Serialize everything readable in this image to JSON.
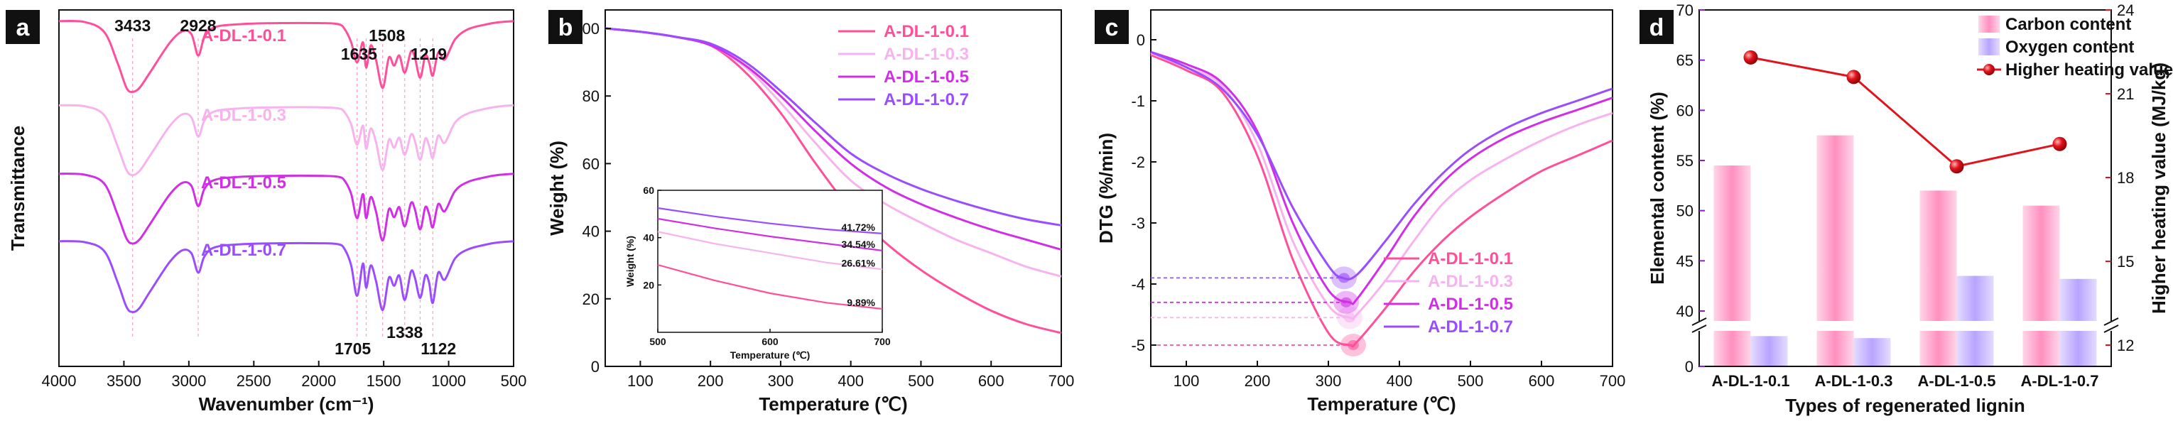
{
  "colors": {
    "s1": "#ff4f9a",
    "s2": "#f7b3ee",
    "s3": "#d12fe6",
    "s4": "#9a4cff",
    "carbon": "#ff8fbf",
    "oxygen": "#b8a4ff",
    "hhv": "#e0141c",
    "axis_red": "#e0141c",
    "axis_purple": "#8a1fc7"
  },
  "chart_data": [
    {
      "panel": "a",
      "type": "line",
      "xlabel": "Wavenumber (cm⁻¹)",
      "ylabel": "Transmittance",
      "xlim": [
        4000,
        500
      ],
      "xticks": [
        4000,
        3500,
        3000,
        2500,
        2000,
        1500,
        1000,
        500
      ],
      "series": [
        {
          "name": "A-DL-1-0.1",
          "x": [
            4000,
            3800,
            3650,
            3550,
            3480,
            3433,
            3380,
            3300,
            3150,
            3050,
            2980,
            2928,
            2880,
            2800,
            2600,
            2300,
            2000,
            1850,
            1800,
            1750,
            1705,
            1660,
            1635,
            1600,
            1560,
            1508,
            1460,
            1420,
            1380,
            1338,
            1290,
            1260,
            1219,
            1180,
            1150,
            1122,
            1080,
            1030,
            950,
            850,
            700,
            600,
            500
          ],
          "y": [
            96,
            95,
            85,
            55,
            30,
            26,
            30,
            45,
            74,
            86,
            83,
            62,
            80,
            90,
            93,
            94,
            94,
            93,
            88,
            75,
            55,
            75,
            50,
            72,
            58,
            30,
            60,
            52,
            62,
            45,
            66,
            60,
            40,
            62,
            55,
            42,
            65,
            58,
            78,
            88,
            93,
            95,
            96
          ]
        },
        {
          "name": "A-DL-1-0.3",
          "x": [
            4000,
            3800,
            3650,
            3550,
            3480,
            3433,
            3380,
            3300,
            3150,
            3050,
            2980,
            2928,
            2880,
            2800,
            2600,
            2300,
            2000,
            1850,
            1800,
            1750,
            1705,
            1660,
            1635,
            1600,
            1560,
            1508,
            1460,
            1420,
            1380,
            1338,
            1290,
            1260,
            1219,
            1180,
            1150,
            1122,
            1080,
            1030,
            950,
            850,
            700,
            600,
            500
          ],
          "y": [
            97,
            96,
            87,
            57,
            33,
            28,
            32,
            47,
            76,
            88,
            85,
            66,
            82,
            91,
            94,
            95,
            95,
            94,
            90,
            78,
            58,
            77,
            54,
            74,
            61,
            33,
            63,
            55,
            65,
            48,
            68,
            62,
            43,
            64,
            57,
            45,
            67,
            60,
            80,
            89,
            94,
            96,
            97
          ]
        },
        {
          "name": "A-DL-1-0.5",
          "x": [
            4000,
            3800,
            3650,
            3550,
            3480,
            3433,
            3380,
            3300,
            3150,
            3050,
            2980,
            2928,
            2880,
            2800,
            2600,
            2300,
            2000,
            1850,
            1800,
            1750,
            1705,
            1660,
            1635,
            1600,
            1560,
            1508,
            1460,
            1420,
            1380,
            1338,
            1290,
            1260,
            1219,
            1180,
            1150,
            1122,
            1080,
            1030,
            950,
            850,
            700,
            600,
            500
          ],
          "y": [
            96,
            95,
            86,
            56,
            32,
            27,
            31,
            46,
            75,
            87,
            84,
            64,
            81,
            90,
            93,
            94,
            94,
            93,
            89,
            76,
            52,
            76,
            52,
            73,
            59,
            30,
            61,
            53,
            63,
            44,
            67,
            61,
            41,
            63,
            56,
            43,
            66,
            59,
            79,
            88,
            93,
            95,
            96
          ]
        },
        {
          "name": "A-DL-1-0.7",
          "x": [
            4000,
            3800,
            3650,
            3550,
            3480,
            3433,
            3380,
            3300,
            3150,
            3050,
            2980,
            2928,
            2880,
            2800,
            2600,
            2300,
            2000,
            1850,
            1800,
            1750,
            1705,
            1660,
            1635,
            1600,
            1560,
            1508,
            1460,
            1420,
            1380,
            1338,
            1290,
            1260,
            1219,
            1180,
            1150,
            1122,
            1080,
            1030,
            950,
            850,
            700,
            600,
            500
          ],
          "y": [
            96,
            95,
            86,
            56,
            31,
            26,
            30,
            46,
            75,
            87,
            84,
            65,
            81,
            90,
            93,
            94,
            94,
            93,
            88,
            72,
            42,
            74,
            50,
            72,
            57,
            28,
            60,
            52,
            62,
            38,
            66,
            60,
            40,
            62,
            55,
            35,
            65,
            58,
            79,
            88,
            93,
            95,
            96
          ]
        }
      ],
      "annotations": [
        "3433",
        "2928",
        "1635",
        "1508",
        "1219",
        "1705",
        "1338",
        "1122"
      ],
      "annotation_positions_cm": [
        3433,
        2928,
        1635,
        1508,
        1219,
        1705,
        1338,
        1122
      ],
      "grid": false
    },
    {
      "panel": "b",
      "type": "line",
      "xlabel": "Temperature (℃)",
      "ylabel": "Weight (%)",
      "xlim": [
        50,
        700
      ],
      "ylim": [
        0,
        100
      ],
      "xticks": [
        100,
        200,
        300,
        400,
        500,
        600,
        700
      ],
      "yticks": [
        0,
        20,
        40,
        60,
        80,
        100
      ],
      "series": [
        {
          "name": "A-DL-1-0.1",
          "x": [
            50,
            100,
            150,
            200,
            250,
            300,
            350,
            400,
            450,
            500,
            550,
            600,
            650,
            700
          ],
          "y": [
            100,
            99,
            97.5,
            95,
            87,
            75,
            60,
            46.5,
            36.5,
            28.5,
            22,
            16.5,
            12.5,
            9.89
          ]
        },
        {
          "name": "A-DL-1-0.3",
          "x": [
            50,
            100,
            150,
            200,
            250,
            300,
            350,
            400,
            450,
            500,
            550,
            600,
            650,
            700
          ],
          "y": [
            100,
            99,
            97.5,
            95,
            88.5,
            78,
            66,
            55,
            48,
            42.5,
            37.5,
            33.5,
            29.5,
            26.61
          ]
        },
        {
          "name": "A-DL-1-0.5",
          "x": [
            50,
            100,
            150,
            200,
            250,
            300,
            350,
            400,
            450,
            500,
            550,
            600,
            650,
            700
          ],
          "y": [
            100,
            99,
            97.5,
            95,
            89,
            80,
            69.5,
            60,
            53,
            48,
            44,
            40.5,
            37.5,
            34.54
          ]
        },
        {
          "name": "A-DL-1-0.7",
          "x": [
            50,
            100,
            150,
            200,
            250,
            300,
            350,
            400,
            450,
            500,
            550,
            600,
            650,
            700
          ],
          "y": [
            100,
            99,
            97.5,
            95.5,
            90,
            81.5,
            72,
            63,
            57,
            52.5,
            49,
            46,
            43.5,
            41.72
          ]
        }
      ],
      "legend": "top-right",
      "inset": {
        "xlabel": "Temperature (℃)",
        "ylabel": "Weight (%)",
        "xlim": [
          500,
          700
        ],
        "ylim": [
          0,
          60
        ],
        "xticks": [
          500,
          600,
          700
        ],
        "yticks": [
          20,
          40,
          60
        ],
        "end_labels": [
          "41.72%",
          "34.54%",
          "26.61%",
          "9.89%"
        ]
      },
      "grid": false
    },
    {
      "panel": "c",
      "type": "line",
      "xlabel": "Temperature (℃)",
      "ylabel": "DTG (%/min)",
      "xlim": [
        50,
        700
      ],
      "ylim": [
        -5.3,
        0.3
      ],
      "xticks": [
        100,
        200,
        300,
        400,
        500,
        600,
        700
      ],
      "yticks": [
        0,
        -1,
        -2,
        -3,
        -4,
        -5
      ],
      "series": [
        {
          "name": "A-DL-1-0.1",
          "x": [
            50,
            100,
            150,
            200,
            250,
            300,
            330,
            340,
            380,
            420,
            460,
            500,
            550,
            600,
            650,
            700
          ],
          "y": [
            -0.25,
            -0.5,
            -0.85,
            -1.9,
            -3.6,
            -4.8,
            -5.0,
            -4.95,
            -4.4,
            -3.8,
            -3.3,
            -2.9,
            -2.5,
            -2.15,
            -1.9,
            -1.65
          ]
        },
        {
          "name": "A-DL-1-0.3",
          "x": [
            50,
            100,
            150,
            200,
            250,
            300,
            330,
            340,
            380,
            420,
            460,
            500,
            550,
            600,
            650,
            700
          ],
          "y": [
            -0.22,
            -0.45,
            -0.75,
            -1.7,
            -3.3,
            -4.35,
            -4.55,
            -4.5,
            -3.95,
            -3.3,
            -2.7,
            -2.3,
            -1.95,
            -1.65,
            -1.4,
            -1.2
          ]
        },
        {
          "name": "A-DL-1-0.5",
          "x": [
            50,
            100,
            150,
            200,
            250,
            300,
            330,
            340,
            380,
            420,
            460,
            500,
            550,
            600,
            650,
            700
          ],
          "y": [
            -0.2,
            -0.4,
            -0.7,
            -1.5,
            -3.0,
            -4.1,
            -4.3,
            -4.25,
            -3.6,
            -2.9,
            -2.35,
            -1.95,
            -1.6,
            -1.35,
            -1.15,
            -0.95
          ]
        },
        {
          "name": "A-DL-1-0.7",
          "x": [
            50,
            100,
            150,
            200,
            250,
            300,
            320,
            340,
            380,
            420,
            460,
            500,
            550,
            600,
            650,
            700
          ],
          "y": [
            -0.2,
            -0.45,
            -0.8,
            -1.55,
            -2.75,
            -3.7,
            -3.9,
            -3.85,
            -3.3,
            -2.7,
            -2.2,
            -1.8,
            -1.45,
            -1.2,
            -1.0,
            -0.8
          ]
        }
      ],
      "peaks": [
        {
          "series": "A-DL-1-0.1",
          "x": 335,
          "y": -5.0
        },
        {
          "series": "A-DL-1-0.3",
          "x": 330,
          "y": -4.55
        },
        {
          "series": "A-DL-1-0.5",
          "x": 325,
          "y": -4.3
        },
        {
          "series": "A-DL-1-0.7",
          "x": 322,
          "y": -3.9
        }
      ],
      "legend": "bottom-right",
      "grid": false
    },
    {
      "panel": "d",
      "type": "bar",
      "xlabel": "Types of regenerated lignin",
      "ylabel": "Elemental content (%)",
      "y2label": "Higher heating value (MJ/kg)",
      "categories": [
        "A-DL-1-0.1",
        "A-DL-1-0.3",
        "A-DL-1-0.5",
        "A-DL-1-0.7"
      ],
      "series": [
        {
          "name": "Carbon content",
          "values": [
            54.5,
            57.5,
            52.0,
            50.5
          ],
          "axis": "left"
        },
        {
          "name": "Oxygen content",
          "values": [
            37.5,
            37.3,
            43.5,
            43.2
          ],
          "axis": "left"
        },
        {
          "name": "Higher heating value",
          "values": [
            22.3,
            21.6,
            18.4,
            19.2
          ],
          "axis": "right",
          "type": "line"
        }
      ],
      "yticks": [
        0,
        40,
        45,
        50,
        55,
        60,
        65,
        70
      ],
      "y_break": [
        5,
        35
      ],
      "y2ticks": [
        12,
        15,
        18,
        21,
        24
      ],
      "y2lim": [
        11.4,
        24
      ],
      "legend": "top-right",
      "grid": false
    }
  ]
}
